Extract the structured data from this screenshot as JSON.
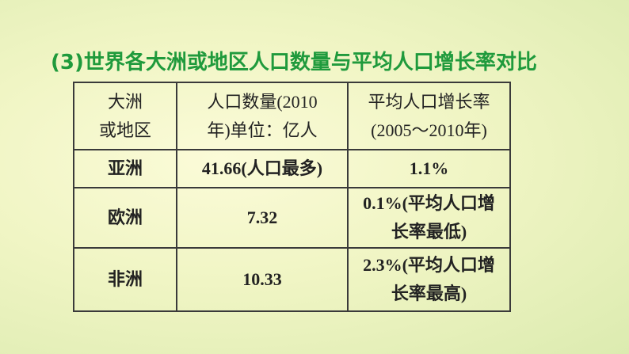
{
  "title": "(3)世界各大洲或地区人口数量与平均人口增长率对比",
  "table": {
    "header": [
      [
        "大洲",
        "或地区"
      ],
      [
        "人口数量(2010",
        "年)单位：亿人"
      ],
      [
        "平均人口增长率",
        "(2005～2010年)"
      ]
    ],
    "rows": [
      [
        [
          "亚洲"
        ],
        [
          "41.66(人口最多)"
        ],
        [
          "1.1%"
        ]
      ],
      [
        [
          "欧洲"
        ],
        [
          "7.32"
        ],
        [
          "0.1%(平均人口增",
          "长率最低)"
        ]
      ],
      [
        [
          "非洲"
        ],
        [
          "10.33"
        ],
        [
          "2.3%(平均人口增",
          "长率最高)"
        ]
      ]
    ]
  }
}
